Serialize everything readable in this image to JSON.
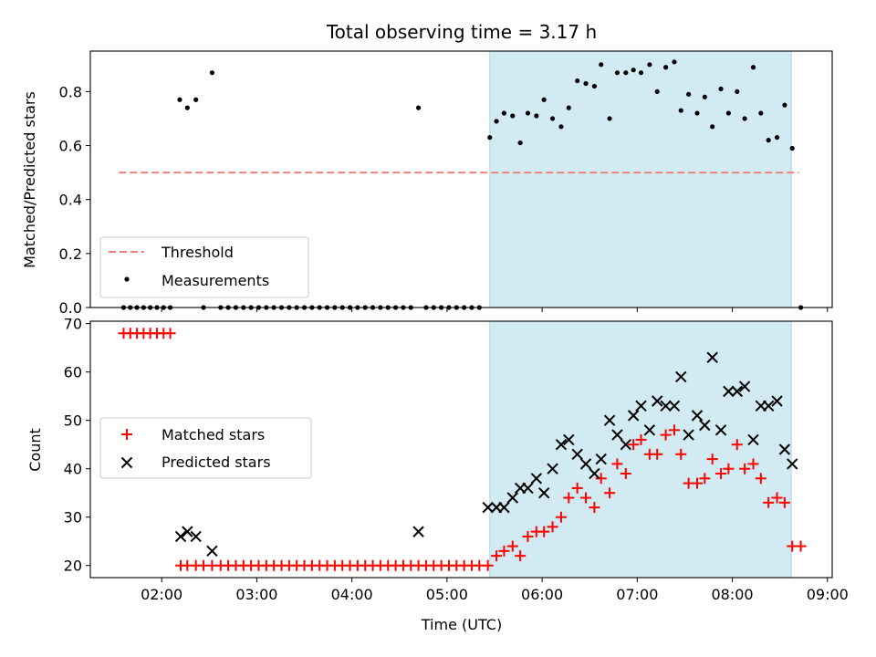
{
  "chart_data": {
    "type": "scatter",
    "title": "Total observing time = 3.17 h",
    "xlabel": "Time (UTC)",
    "xlim": [
      1.25,
      9.05
    ],
    "xticks": [
      2,
      3,
      4,
      5,
      6,
      7,
      8,
      9
    ],
    "xtick_labels": [
      "02:00",
      "03:00",
      "04:00",
      "05:00",
      "06:00",
      "07:00",
      "08:00",
      "09:00"
    ],
    "shaded_interval": [
      5.45,
      8.62
    ],
    "shade_color": "#add8e6",
    "top": {
      "ylabel": "Matched/Predicted stars",
      "ylim": [
        0,
        0.95
      ],
      "yticks": [
        0.0,
        0.2,
        0.4,
        0.6,
        0.8
      ],
      "ytick_labels": [
        "0.0",
        "0.2",
        "0.4",
        "0.6",
        "0.8"
      ],
      "legend_position": "lower-left",
      "threshold": {
        "name": "Threshold",
        "value": 0.5,
        "x_range": [
          1.55,
          8.7
        ],
        "color": "#f08080"
      },
      "measurements": {
        "name": "Measurements",
        "color": "#000000",
        "points": [
          [
            1.6,
            0
          ],
          [
            1.67,
            0
          ],
          [
            1.74,
            0
          ],
          [
            1.81,
            0
          ],
          [
            1.88,
            0
          ],
          [
            1.95,
            0
          ],
          [
            2.02,
            0
          ],
          [
            2.09,
            0
          ],
          [
            2.19,
            0.77
          ],
          [
            2.27,
            0.74
          ],
          [
            2.36,
            0.77
          ],
          [
            2.44,
            0
          ],
          [
            2.53,
            0.87
          ],
          [
            2.62,
            0
          ],
          [
            2.7,
            0
          ],
          [
            2.78,
            0
          ],
          [
            2.86,
            0
          ],
          [
            2.94,
            0
          ],
          [
            3.02,
            0
          ],
          [
            3.1,
            0
          ],
          [
            3.18,
            0
          ],
          [
            3.26,
            0
          ],
          [
            3.34,
            0
          ],
          [
            3.42,
            0
          ],
          [
            3.5,
            0
          ],
          [
            3.58,
            0
          ],
          [
            3.66,
            0
          ],
          [
            3.74,
            0
          ],
          [
            3.82,
            0
          ],
          [
            3.9,
            0
          ],
          [
            3.98,
            0
          ],
          [
            4.06,
            0
          ],
          [
            4.14,
            0
          ],
          [
            4.22,
            0
          ],
          [
            4.3,
            0
          ],
          [
            4.38,
            0
          ],
          [
            4.46,
            0
          ],
          [
            4.54,
            0
          ],
          [
            4.62,
            0
          ],
          [
            4.7,
            0.74
          ],
          [
            4.78,
            0
          ],
          [
            4.86,
            0
          ],
          [
            4.94,
            0
          ],
          [
            5.02,
            0
          ],
          [
            5.1,
            0
          ],
          [
            5.18,
            0
          ],
          [
            5.26,
            0
          ],
          [
            5.34,
            0
          ],
          [
            5.45,
            0.63
          ],
          [
            5.52,
            0.69
          ],
          [
            5.6,
            0.72
          ],
          [
            5.69,
            0.71
          ],
          [
            5.77,
            0.61
          ],
          [
            5.85,
            0.72
          ],
          [
            5.94,
            0.71
          ],
          [
            6.02,
            0.77
          ],
          [
            6.11,
            0.7
          ],
          [
            6.2,
            0.67
          ],
          [
            6.28,
            0.74
          ],
          [
            6.37,
            0.84
          ],
          [
            6.46,
            0.83
          ],
          [
            6.55,
            0.82
          ],
          [
            6.62,
            0.9
          ],
          [
            6.71,
            0.7
          ],
          [
            6.79,
            0.87
          ],
          [
            6.88,
            0.87
          ],
          [
            6.96,
            0.88
          ],
          [
            7.04,
            0.87
          ],
          [
            7.13,
            0.9
          ],
          [
            7.21,
            0.8
          ],
          [
            7.3,
            0.89
          ],
          [
            7.39,
            0.91
          ],
          [
            7.46,
            0.73
          ],
          [
            7.54,
            0.79
          ],
          [
            7.63,
            0.72
          ],
          [
            7.71,
            0.78
          ],
          [
            7.79,
            0.67
          ],
          [
            7.88,
            0.81
          ],
          [
            7.96,
            0.72
          ],
          [
            8.05,
            0.8
          ],
          [
            8.13,
            0.7
          ],
          [
            8.22,
            0.89
          ],
          [
            8.3,
            0.72
          ],
          [
            8.38,
            0.62
          ],
          [
            8.47,
            0.63
          ],
          [
            8.55,
            0.75
          ],
          [
            8.63,
            0.59
          ],
          [
            8.72,
            0
          ]
        ]
      }
    },
    "bottom": {
      "ylabel": "Count",
      "ylim": [
        17.5,
        70.5
      ],
      "yticks": [
        20,
        30,
        40,
        50,
        60,
        70
      ],
      "ytick_labels": [
        "20",
        "30",
        "40",
        "50",
        "60",
        "70"
      ],
      "legend_position": "center-left",
      "series": [
        {
          "name": "Matched stars",
          "marker": "plus",
          "color": "#ff0000",
          "points": [
            [
              1.6,
              68
            ],
            [
              1.67,
              68
            ],
            [
              1.74,
              68
            ],
            [
              1.81,
              68
            ],
            [
              1.88,
              68
            ],
            [
              1.95,
              68
            ],
            [
              2.02,
              68
            ],
            [
              2.09,
              68
            ],
            [
              2.2,
              20
            ],
            [
              2.27,
              20
            ],
            [
              2.36,
              20
            ],
            [
              2.44,
              20
            ],
            [
              2.53,
              20
            ],
            [
              2.62,
              20
            ],
            [
              2.7,
              20
            ],
            [
              2.78,
              20
            ],
            [
              2.86,
              20
            ],
            [
              2.94,
              20
            ],
            [
              3.02,
              20
            ],
            [
              3.1,
              20
            ],
            [
              3.18,
              20
            ],
            [
              3.26,
              20
            ],
            [
              3.34,
              20
            ],
            [
              3.42,
              20
            ],
            [
              3.5,
              20
            ],
            [
              3.58,
              20
            ],
            [
              3.66,
              20
            ],
            [
              3.74,
              20
            ],
            [
              3.82,
              20
            ],
            [
              3.9,
              20
            ],
            [
              3.98,
              20
            ],
            [
              4.06,
              20
            ],
            [
              4.14,
              20
            ],
            [
              4.22,
              20
            ],
            [
              4.3,
              20
            ],
            [
              4.38,
              20
            ],
            [
              4.46,
              20
            ],
            [
              4.54,
              20
            ],
            [
              4.62,
              20
            ],
            [
              4.7,
              20
            ],
            [
              4.78,
              20
            ],
            [
              4.86,
              20
            ],
            [
              4.94,
              20
            ],
            [
              5.02,
              20
            ],
            [
              5.1,
              20
            ],
            [
              5.18,
              20
            ],
            [
              5.26,
              20
            ],
            [
              5.34,
              20
            ],
            [
              5.43,
              20
            ],
            [
              5.52,
              22
            ],
            [
              5.6,
              23
            ],
            [
              5.69,
              24
            ],
            [
              5.77,
              22
            ],
            [
              5.85,
              26
            ],
            [
              5.94,
              27
            ],
            [
              6.02,
              27
            ],
            [
              6.11,
              28
            ],
            [
              6.2,
              30
            ],
            [
              6.28,
              34
            ],
            [
              6.37,
              36
            ],
            [
              6.46,
              34
            ],
            [
              6.55,
              32
            ],
            [
              6.62,
              38
            ],
            [
              6.71,
              35
            ],
            [
              6.79,
              41
            ],
            [
              6.88,
              39
            ],
            [
              6.96,
              45
            ],
            [
              7.04,
              46
            ],
            [
              7.13,
              43
            ],
            [
              7.21,
              43
            ],
            [
              7.3,
              47
            ],
            [
              7.39,
              48
            ],
            [
              7.46,
              43
            ],
            [
              7.54,
              37
            ],
            [
              7.63,
              37
            ],
            [
              7.71,
              38
            ],
            [
              7.79,
              42
            ],
            [
              7.88,
              39
            ],
            [
              7.96,
              40
            ],
            [
              8.05,
              45
            ],
            [
              8.13,
              40
            ],
            [
              8.22,
              41
            ],
            [
              8.3,
              38
            ],
            [
              8.38,
              33
            ],
            [
              8.47,
              34
            ],
            [
              8.55,
              33
            ],
            [
              8.63,
              24
            ],
            [
              8.72,
              24
            ]
          ]
        },
        {
          "name": "Predicted stars",
          "marker": "x",
          "color": "#000000",
          "points": [
            [
              2.2,
              26
            ],
            [
              2.27,
              27
            ],
            [
              2.36,
              26
            ],
            [
              2.53,
              23
            ],
            [
              4.7,
              27
            ],
            [
              5.43,
              32
            ],
            [
              5.52,
              32
            ],
            [
              5.6,
              32
            ],
            [
              5.69,
              34
            ],
            [
              5.77,
              36
            ],
            [
              5.85,
              36
            ],
            [
              5.94,
              38
            ],
            [
              6.02,
              35
            ],
            [
              6.11,
              40
            ],
            [
              6.2,
              45
            ],
            [
              6.28,
              46
            ],
            [
              6.37,
              43
            ],
            [
              6.46,
              41
            ],
            [
              6.55,
              39
            ],
            [
              6.62,
              42
            ],
            [
              6.71,
              50
            ],
            [
              6.79,
              47
            ],
            [
              6.88,
              45
            ],
            [
              6.96,
              51
            ],
            [
              7.04,
              53
            ],
            [
              7.13,
              48
            ],
            [
              7.21,
              54
            ],
            [
              7.3,
              53
            ],
            [
              7.39,
              53
            ],
            [
              7.46,
              59
            ],
            [
              7.54,
              47
            ],
            [
              7.63,
              51
            ],
            [
              7.71,
              49
            ],
            [
              7.79,
              63
            ],
            [
              7.88,
              48
            ],
            [
              7.96,
              56
            ],
            [
              8.05,
              56
            ],
            [
              8.13,
              57
            ],
            [
              8.22,
              46
            ],
            [
              8.3,
              53
            ],
            [
              8.38,
              53
            ],
            [
              8.47,
              54
            ],
            [
              8.55,
              44
            ],
            [
              8.63,
              41
            ]
          ]
        }
      ]
    }
  }
}
